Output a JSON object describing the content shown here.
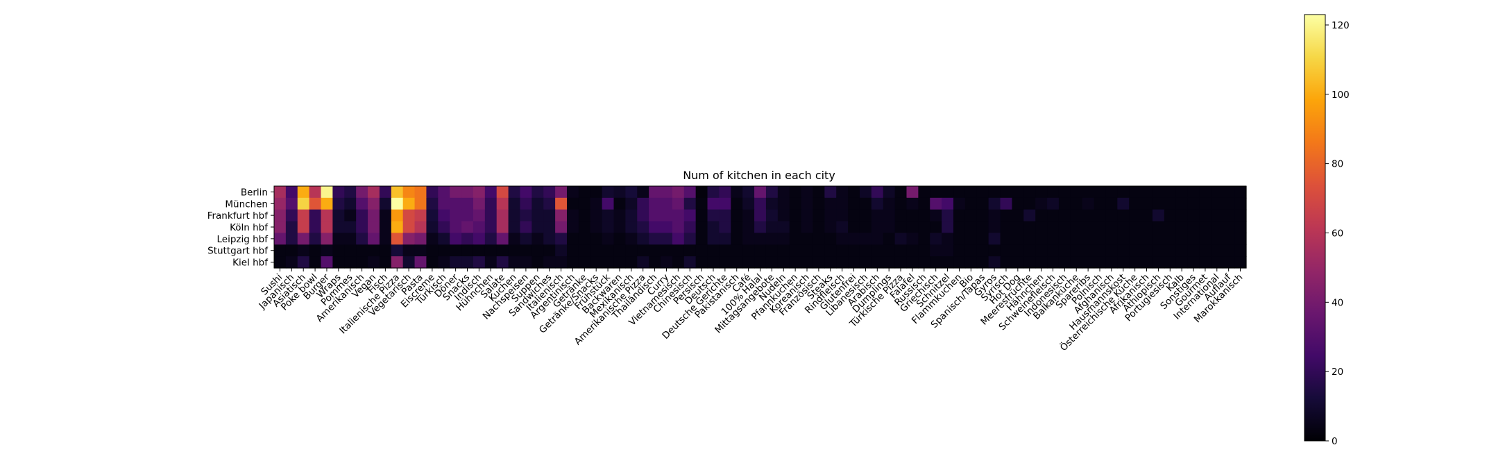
{
  "chart_data": {
    "type": "heatmap",
    "title": "Num of kitchen in each city",
    "xlabel": "",
    "ylabel": "",
    "colormap": "inferno",
    "colorbar": {
      "ticks": [
        0,
        20,
        40,
        60,
        80,
        100,
        120
      ],
      "vmin": 0,
      "vmax": 123
    },
    "rows": [
      "Berlin",
      "München",
      "Frankfurt hbf",
      "Köln hbf",
      "Leipzig hbf",
      "Stuttgart hbf",
      "Kiel hbf"
    ],
    "columns": [
      "Sushi",
      "Japanisch",
      "Asiatisch",
      "Poke bowl",
      "Burger",
      "Wraps",
      "Pommes",
      "Amerikanisch",
      "Vegan",
      "Fisch",
      "Italienische Pizza",
      "Vegetarisch",
      "Pasta",
      "Eiscreme",
      "Türkisch",
      "Döner",
      "Snacks",
      "Indisch",
      "Hühnchen",
      "Salate",
      "Kuchen",
      "Nachspeisen",
      "Suppen",
      "Sandwiches",
      "Italienisch",
      "Argentinisch",
      "Getränke",
      "Getränke/Snacks",
      "Frühstück",
      "Backwaren",
      "Mexikanisch",
      "Amerikanische Pizza",
      "Thailändisch",
      "Curry",
      "Vietnamesisch",
      "Chinesisch",
      "Persisch",
      "Deutsch",
      "Deutsche Gerichte",
      "Pakistanisch",
      "Café",
      "100% Halal",
      "Mittagsangebote",
      "Nudeln",
      "Pfannkuchen",
      "Koreanisch",
      "Französisch",
      "Steaks",
      "Rindfleisch",
      "Glutenfrei",
      "Libanesisch",
      "Arabisch",
      "Dumplings",
      "Türkische Pizza",
      "Falafel",
      "Russisch",
      "Griechisch",
      "Schnitzel",
      "Flammkuchen",
      "Bio",
      "Spanisch/Tapas",
      "Gyros",
      "Syrisch",
      "Hot Dog",
      "Meeresfrüchte",
      "Hähnchen",
      "Schweinefleisch",
      "Indonesisch",
      "Balkanküche",
      "Spareribs",
      "Polnisch",
      "Afghanisch",
      "Hausmannskost",
      "Österreichische Küche",
      "Afrikanisch",
      "Äthiopisch",
      "Portugiesisch",
      "Kalb",
      "Sonstiges",
      "Gourmet",
      "International",
      "Auflauf",
      "Marokkanisch"
    ],
    "values": [
      [
        55,
        25,
        100,
        60,
        120,
        20,
        15,
        40,
        55,
        20,
        105,
        90,
        85,
        20,
        30,
        40,
        40,
        45,
        25,
        70,
        15,
        25,
        15,
        20,
        40,
        5,
        3,
        3,
        10,
        8,
        12,
        5,
        35,
        35,
        40,
        30,
        2,
        15,
        20,
        5,
        10,
        35,
        15,
        5,
        3,
        5,
        3,
        15,
        5,
        3,
        8,
        20,
        8,
        3,
        40,
        3,
        3,
        3,
        3,
        3,
        3,
        3,
        3,
        3,
        3,
        3,
        3,
        3,
        3,
        3,
        3,
        3,
        3,
        3,
        3,
        3,
        3,
        3,
        3,
        3,
        3,
        3,
        3
      ],
      [
        50,
        30,
        110,
        75,
        100,
        15,
        10,
        30,
        45,
        10,
        123,
        100,
        85,
        15,
        30,
        30,
        30,
        40,
        20,
        60,
        10,
        20,
        10,
        15,
        75,
        3,
        3,
        5,
        25,
        3,
        8,
        20,
        30,
        30,
        35,
        15,
        3,
        25,
        25,
        3,
        8,
        20,
        8,
        5,
        3,
        5,
        3,
        5,
        5,
        3,
        3,
        10,
        5,
        3,
        5,
        3,
        30,
        25,
        5,
        3,
        3,
        10,
        20,
        3,
        3,
        5,
        8,
        3,
        3,
        5,
        3,
        3,
        10,
        3,
        3,
        3,
        3,
        3,
        3,
        3,
        3,
        3,
        3
      ],
      [
        45,
        20,
        65,
        20,
        60,
        10,
        5,
        20,
        40,
        5,
        95,
        70,
        65,
        12,
        25,
        30,
        30,
        35,
        20,
        55,
        10,
        15,
        10,
        10,
        45,
        5,
        3,
        5,
        8,
        5,
        10,
        20,
        30,
        30,
        30,
        25,
        3,
        15,
        15,
        3,
        5,
        20,
        10,
        5,
        3,
        5,
        3,
        5,
        5,
        3,
        3,
        5,
        5,
        3,
        3,
        3,
        5,
        15,
        3,
        3,
        3,
        5,
        3,
        3,
        10,
        3,
        3,
        3,
        3,
        3,
        3,
        3,
        3,
        3,
        3,
        10,
        3,
        3,
        3,
        3,
        3,
        3,
        3
      ],
      [
        45,
        15,
        65,
        20,
        60,
        10,
        10,
        20,
        40,
        5,
        100,
        70,
        60,
        10,
        20,
        30,
        35,
        30,
        20,
        55,
        10,
        20,
        10,
        10,
        40,
        5,
        3,
        5,
        8,
        5,
        10,
        15,
        25,
        25,
        30,
        20,
        3,
        10,
        15,
        3,
        5,
        15,
        8,
        8,
        3,
        5,
        3,
        5,
        8,
        3,
        3,
        5,
        5,
        3,
        3,
        3,
        3,
        15,
        3,
        3,
        3,
        5,
        3,
        3,
        3,
        3,
        3,
        3,
        3,
        3,
        3,
        3,
        3,
        3,
        3,
        3,
        3,
        3,
        3,
        3,
        3,
        3,
        3
      ],
      [
        35,
        15,
        40,
        15,
        45,
        5,
        5,
        15,
        35,
        5,
        75,
        45,
        40,
        5,
        10,
        25,
        20,
        25,
        15,
        35,
        5,
        10,
        5,
        10,
        15,
        3,
        3,
        3,
        5,
        3,
        5,
        10,
        15,
        15,
        25,
        15,
        3,
        10,
        10,
        3,
        5,
        5,
        5,
        5,
        3,
        3,
        3,
        3,
        5,
        5,
        5,
        5,
        3,
        8,
        5,
        3,
        8,
        5,
        3,
        3,
        3,
        10,
        3,
        3,
        3,
        3,
        3,
        3,
        3,
        3,
        3,
        3,
        3,
        3,
        3,
        3,
        3,
        3,
        3,
        3,
        3,
        3,
        3
      ],
      [
        3,
        3,
        5,
        3,
        5,
        3,
        3,
        3,
        3,
        3,
        12,
        5,
        5,
        3,
        3,
        3,
        3,
        3,
        3,
        3,
        3,
        3,
        3,
        3,
        8,
        3,
        3,
        3,
        3,
        3,
        3,
        3,
        3,
        3,
        3,
        3,
        3,
        3,
        3,
        3,
        3,
        3,
        3,
        3,
        3,
        3,
        3,
        3,
        3,
        3,
        3,
        3,
        3,
        3,
        3,
        3,
        5,
        5,
        3,
        3,
        3,
        3,
        3,
        3,
        3,
        3,
        3,
        3,
        3,
        3,
        3,
        3,
        3,
        3,
        3,
        3,
        3,
        3,
        3,
        3,
        3,
        3,
        3
      ],
      [
        3,
        5,
        15,
        3,
        30,
        3,
        3,
        3,
        5,
        3,
        45,
        10,
        35,
        3,
        5,
        10,
        10,
        15,
        5,
        15,
        5,
        5,
        3,
        5,
        5,
        3,
        3,
        3,
        3,
        3,
        3,
        8,
        3,
        5,
        3,
        10,
        3,
        3,
        3,
        3,
        3,
        3,
        3,
        3,
        3,
        3,
        3,
        3,
        3,
        3,
        3,
        3,
        3,
        3,
        3,
        3,
        3,
        3,
        3,
        3,
        3,
        8,
        3,
        3,
        3,
        3,
        3,
        3,
        3,
        3,
        3,
        3,
        3,
        3,
        3,
        3,
        3,
        3,
        3,
        3,
        3,
        3,
        3
      ]
    ]
  }
}
